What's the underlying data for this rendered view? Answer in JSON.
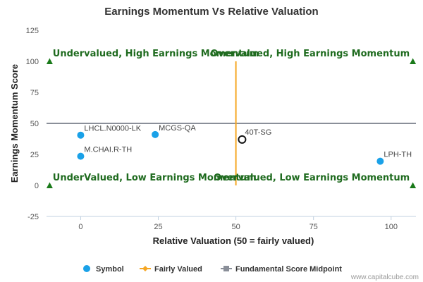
{
  "chart_data": {
    "type": "scatter",
    "title": "Earnings Momentum Vs Relative Valuation",
    "xlabel": "Relative Valuation (50 = fairly valued)",
    "ylabel": "Earnings Momentum Score",
    "xlim": [
      -11,
      108
    ],
    "ylim": [
      -25,
      125
    ],
    "xticks": [
      0,
      25,
      50,
      75,
      100
    ],
    "yticks": [
      -25,
      0,
      25,
      50,
      75,
      100,
      125
    ],
    "series": [
      {
        "name": "Symbol",
        "color": "#1aa1e8",
        "points": [
          {
            "label": "LHCL.N0000-LK",
            "x": 0,
            "y": 40.5
          },
          {
            "label": "MCGS-QA",
            "x": 24,
            "y": 41
          },
          {
            "label": "M.CHAI.R-TH",
            "x": 0,
            "y": 23.5
          },
          {
            "label": "LPH-TH",
            "x": 96.5,
            "y": 19.5
          }
        ]
      }
    ],
    "highlight": {
      "label": "40T-SG",
      "x": 52,
      "y": 37
    },
    "fairly_valued": {
      "name": "Fairly Valued",
      "x": 50,
      "y_range": [
        0,
        100
      ],
      "color": "#f5a623"
    },
    "midpoint": {
      "name": "Fundamental Score Midpoint",
      "y": 50,
      "color": "#8a8f99"
    },
    "corner_markers": [
      {
        "x": -10,
        "y": 100
      },
      {
        "x": 107,
        "y": 100
      },
      {
        "x": -10,
        "y": 0
      },
      {
        "x": 107,
        "y": 0
      }
    ],
    "quadrant_labels": [
      {
        "text": "Undervalued, High Earnings Momentum",
        "x": -9,
        "y": 101,
        "anchor": "start"
      },
      {
        "text": "Overvalued, High Earnings Momentum",
        "x": 106,
        "y": 101,
        "anchor": "end"
      },
      {
        "text": "UnderValued, Low Earnings Momentum",
        "x": -9,
        "y": 1,
        "anchor": "start"
      },
      {
        "text": "Overvalued, Low Earnings Momentum",
        "x": 106,
        "y": 1,
        "anchor": "end"
      }
    ],
    "grid": false,
    "legend": {
      "position": "bottom",
      "items": [
        {
          "name": "Symbol",
          "marker": "circle",
          "color": "#1aa1e8"
        },
        {
          "name": "Fairly Valued",
          "marker": "line-diamond",
          "color": "#f5a623"
        },
        {
          "name": "Fundamental Score Midpoint",
          "marker": "line-square",
          "color": "#8a8f99"
        }
      ]
    },
    "quadrant_color": "#1f6b1f",
    "marker_color": "#1a7a1a"
  },
  "credit": "www.capitalcube.com"
}
